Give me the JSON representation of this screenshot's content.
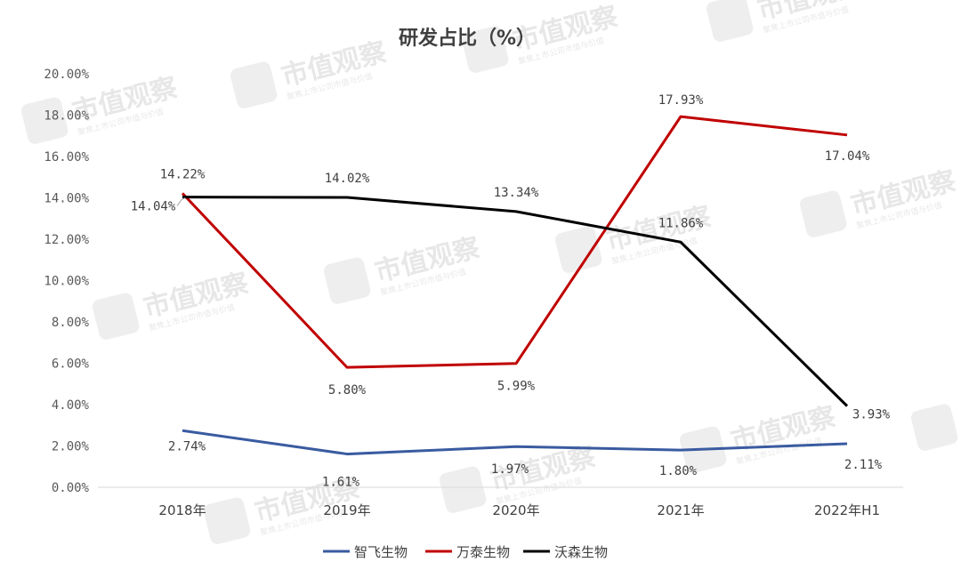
{
  "chart_data": {
    "type": "line",
    "title": "研发占比（%）",
    "categories": [
      "2018年",
      "2019年",
      "2020年",
      "2021年",
      "2022年H1"
    ],
    "ylim": [
      0,
      20
    ],
    "y_ticks": [
      "0.00%",
      "2.00%",
      "4.00%",
      "6.00%",
      "8.00%",
      "10.00%",
      "12.00%",
      "14.00%",
      "16.00%",
      "18.00%",
      "20.00%"
    ],
    "grid": false,
    "legend_position": "bottom",
    "series": [
      {
        "name": "智飞生物",
        "color": "#3A5BA0",
        "values": [
          2.74,
          1.61,
          1.97,
          1.8,
          2.11
        ],
        "labels": [
          "2.74%",
          "1.61%",
          "1.97%",
          "1.80%",
          "2.11%"
        ]
      },
      {
        "name": "万泰生物",
        "color": "#C00000",
        "values": [
          14.22,
          5.8,
          5.99,
          17.93,
          17.04
        ],
        "labels": [
          "14.22%",
          "5.80%",
          "5.99%",
          "17.93%",
          "17.04%"
        ]
      },
      {
        "name": "沃森生物",
        "color": "#000000",
        "values": [
          14.04,
          14.02,
          13.34,
          11.86,
          3.93
        ],
        "labels": [
          "14.04%",
          "14.02%",
          "13.34%",
          "11.86%",
          "3.93%"
        ]
      }
    ]
  },
  "watermark": {
    "text": "市值观察",
    "subtext": "聚焦上市公司市值与价值"
  }
}
